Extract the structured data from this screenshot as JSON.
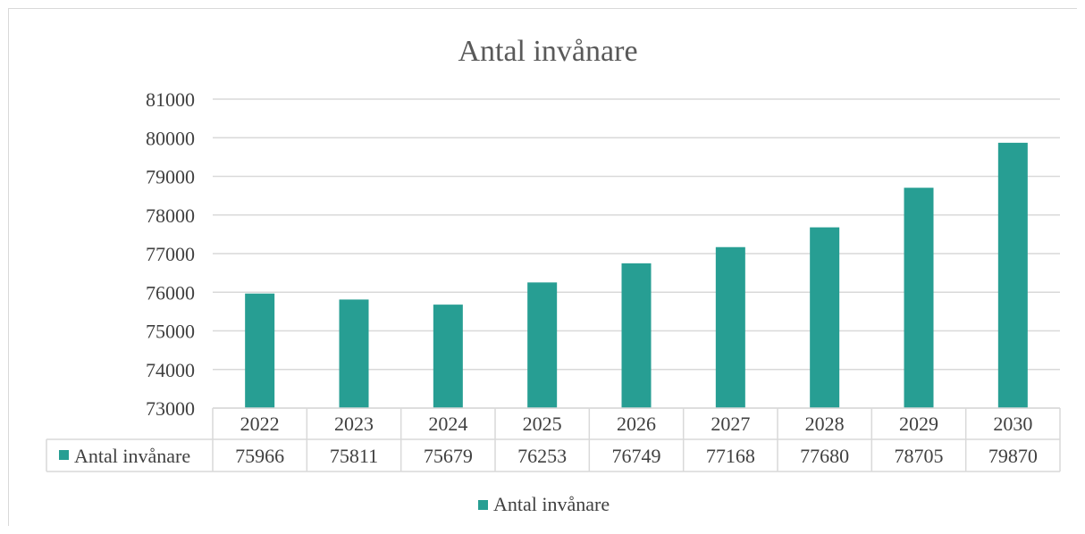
{
  "chart_data": {
    "type": "bar",
    "title": "Antal invånare",
    "categories": [
      "2022",
      "2023",
      "2024",
      "2025",
      "2026",
      "2027",
      "2028",
      "2029",
      "2030"
    ],
    "series": [
      {
        "name": "Antal invånare",
        "values": [
          75966,
          75811,
          75679,
          76253,
          76749,
          77168,
          77680,
          78705,
          79870
        ]
      }
    ],
    "ylim": [
      73000,
      81000
    ],
    "yticks": [
      "81000",
      "80000",
      "79000",
      "78000",
      "77000",
      "76000",
      "75000",
      "74000",
      "73000"
    ],
    "data_table": {
      "row_label": "Antal invånare",
      "values": [
        "75966",
        "75811",
        "75679",
        "76253",
        "76749",
        "77168",
        "77680",
        "78705",
        "79870"
      ]
    },
    "legend": {
      "position": "bottom",
      "label": "Antal invånare"
    },
    "grid": true,
    "colors": {
      "bar": "#279E93",
      "grid": "#d9d9d9"
    }
  }
}
